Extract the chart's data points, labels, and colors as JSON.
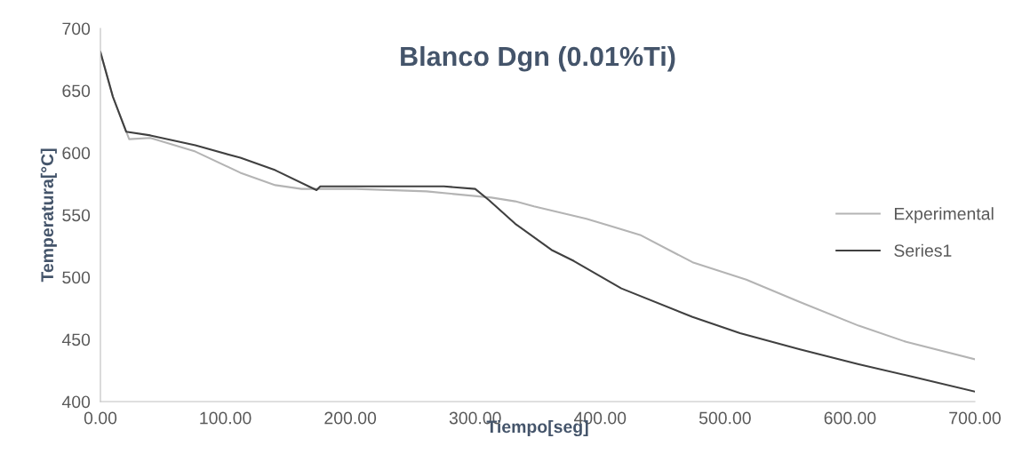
{
  "chart_data": {
    "type": "line",
    "title": "Blanco Dgn (0.01%Ti)",
    "xlabel": "Tiempo[seg]",
    "ylabel": "Temperatura[°C]",
    "xlim": [
      0,
      700
    ],
    "ylim": [
      400,
      700
    ],
    "xticks": [
      {
        "value": 0,
        "label": "0.00"
      },
      {
        "value": 100,
        "label": "100.00"
      },
      {
        "value": 200,
        "label": "200.00"
      },
      {
        "value": 300,
        "label": "300.00"
      },
      {
        "value": 400,
        "label": "400.00"
      },
      {
        "value": 500,
        "label": "500.00"
      },
      {
        "value": 600,
        "label": "600.00"
      },
      {
        "value": 700,
        "label": "700.00"
      }
    ],
    "yticks": [
      400,
      450,
      500,
      550,
      600,
      650,
      700
    ],
    "grid": false,
    "legend": "right",
    "marker": "none",
    "line_style": "solid",
    "series": [
      {
        "name": "Experimental",
        "color": "#b4b4b4",
        "x": [
          0,
          10,
          23,
          40,
          76,
          112,
          140,
          161,
          174,
          204,
          261,
          313,
          332,
          347,
          389,
          432,
          474,
          517,
          560,
          607,
          645,
          700
        ],
        "values": [
          681,
          645,
          611,
          612,
          601,
          584,
          574,
          571,
          571,
          571,
          569,
          564,
          561,
          557,
          547,
          534,
          512,
          498,
          480,
          461,
          448,
          434
        ]
      },
      {
        "name": "Series1",
        "color": "#404040",
        "x": [
          0,
          10,
          20.6,
          40,
          76,
          112,
          140,
          173,
          176,
          204,
          275,
          300,
          311,
          332,
          361,
          379,
          417,
          474,
          512,
          560,
          607,
          650,
          700
        ],
        "values": [
          681,
          645,
          617,
          614,
          606,
          596,
          586,
          570,
          573,
          573,
          573,
          571,
          562,
          543,
          522,
          513,
          491,
          468,
          455,
          442,
          430,
          420,
          408
        ]
      }
    ]
  }
}
